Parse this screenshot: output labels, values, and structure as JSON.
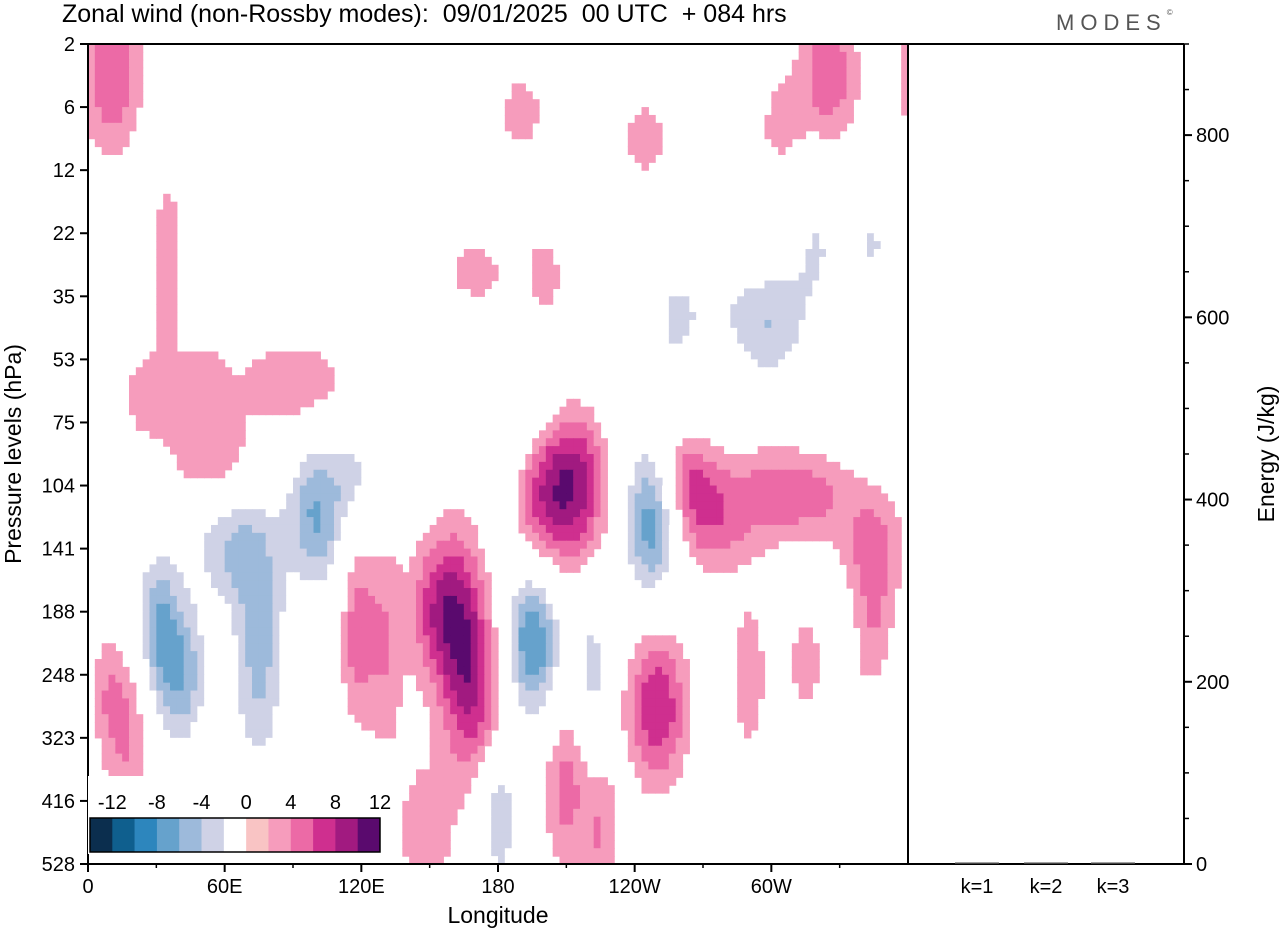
{
  "header": {
    "title": "Zonal wind (non-Rossby modes):  09/01/2025  00 UTC  + 084 hrs",
    "logo": "MODES"
  },
  "chart_data": [
    {
      "type": "heatmap",
      "title": "Zonal wind (non-Rossby modes):  09/01/2025  00 UTC  + 084 hrs",
      "xlabel": "Longitude",
      "ylabel": "Pressure levels (hPa)",
      "x_ticks": [
        "0",
        "60E",
        "120E",
        "180",
        "120W",
        "60W"
      ],
      "y_ticks": [
        "2",
        "6",
        "12",
        "22",
        "35",
        "53",
        "75",
        "104",
        "141",
        "188",
        "248",
        "323",
        "416",
        "528"
      ],
      "y_scale": "model levels (pressure, top to bottom)",
      "colorbar": {
        "labels": [
          "-12",
          "-8",
          "-4",
          "0",
          "4",
          "8",
          "12"
        ],
        "levels": [
          -14,
          -12,
          -10,
          -8,
          -6,
          -4,
          -2,
          2,
          4,
          6,
          8,
          10,
          12,
          14
        ],
        "colors": [
          "#0b2e4e",
          "#0f5f8e",
          "#2d86bd",
          "#66a2cc",
          "#9dbadb",
          "#cfd2e6",
          "#ffffff",
          "#f9c4c4",
          "#f69cbc",
          "#ec6aa6",
          "#cf2f8f",
          "#a11a80",
          "#5a0a6e"
        ]
      },
      "features": [
        {
          "lon": 195,
          "level": "188-248",
          "value": -10
        },
        {
          "lon": 248,
          "level": "104-141",
          "value": -12
        },
        {
          "lon": 40,
          "level": "248",
          "value": -8
        },
        {
          "lon": 100,
          "level": "104-141",
          "value": -8
        },
        {
          "lon": 215,
          "level": "104",
          "value": 8
        },
        {
          "lon": 250,
          "level": "248-323",
          "value": 8
        },
        {
          "lon": 155,
          "level": "188",
          "value": 8
        },
        {
          "lon": 200,
          "level": "104",
          "value": 8
        },
        {
          "lon": 10,
          "level": "2-6",
          "value": 6
        },
        {
          "lon": 325,
          "level": "2-6",
          "value": 6
        }
      ],
      "grid": false
    },
    {
      "type": "bar",
      "categories": [
        "k=1",
        "k=2",
        "k=3"
      ],
      "values": [
        0.8,
        0.8,
        1.0
      ],
      "ylabel": "Energy (J/kg)",
      "ylim": [
        0,
        900
      ],
      "y_ticks": [
        "0",
        "200",
        "400",
        "600",
        "800"
      ]
    }
  ],
  "colors": {
    "background": "#ffffff",
    "axis": "#000000"
  }
}
